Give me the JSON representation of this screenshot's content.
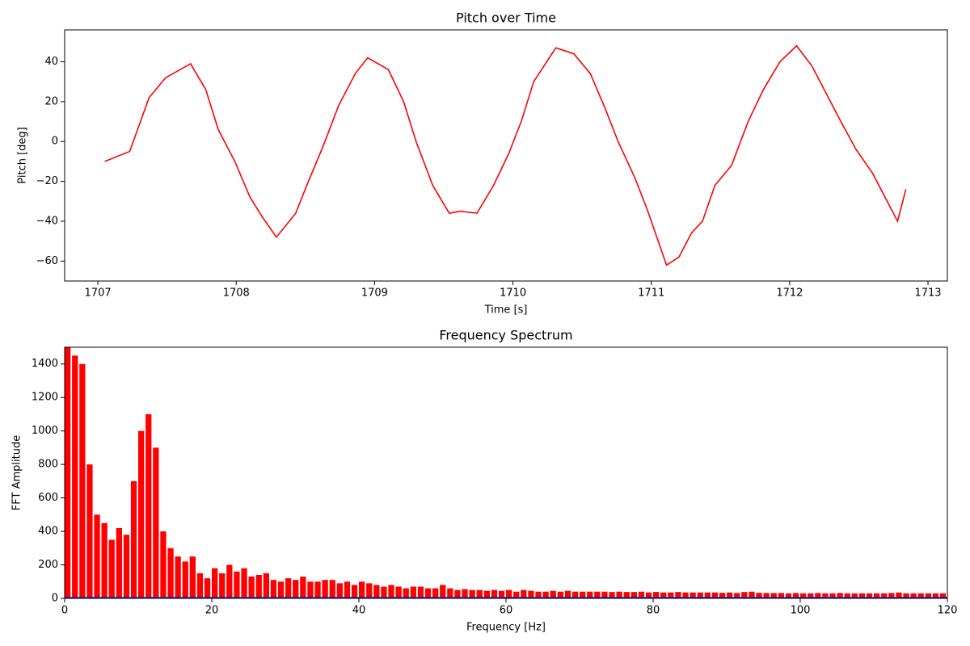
{
  "chart_data": [
    {
      "type": "line",
      "title": "Pitch over Time",
      "x_label": "Time [s]",
      "y_label": "Pitch [deg]",
      "x": [
        1707.05,
        1707.23,
        1707.37,
        1707.49,
        1707.67,
        1707.78,
        1707.87,
        1707.99,
        1708.1,
        1708.19,
        1708.29,
        1708.43,
        1708.51,
        1708.63,
        1708.74,
        1708.86,
        1708.95,
        1709.1,
        1709.21,
        1709.3,
        1709.42,
        1709.54,
        1709.62,
        1709.74,
        1709.86,
        1709.97,
        1710.06,
        1710.15,
        1710.31,
        1710.44,
        1710.56,
        1710.67,
        1710.76,
        1710.88,
        1710.97,
        1711.05,
        1711.11,
        1711.2,
        1711.29,
        1711.37,
        1711.46,
        1711.58,
        1711.7,
        1711.81,
        1711.93,
        1712.05,
        1712.16,
        1712.25,
        1712.37,
        1712.48,
        1712.6,
        1712.69,
        1712.78,
        1712.84
      ],
      "series": [
        {
          "name": "Pitch",
          "color": "#ff0000",
          "values": [
            -10,
            -5,
            22,
            32,
            39,
            26,
            6,
            -10,
            -28,
            -38,
            -48,
            -36,
            -22,
            -2,
            18,
            34,
            42,
            36,
            20,
            0,
            -22,
            -36,
            -35,
            -36,
            -22,
            -6,
            10,
            30,
            47,
            44,
            34,
            16,
            0,
            -18,
            -34,
            -50,
            -62,
            -58,
            -46,
            -40,
            -22,
            -12,
            10,
            26,
            40,
            48,
            38,
            26,
            10,
            -4,
            -16,
            -28,
            -40,
            -24
          ]
        }
      ],
      "xlim": [
        1706.76,
        1713.14
      ],
      "xticks": [
        1707,
        1708,
        1709,
        1710,
        1711,
        1712,
        1713
      ],
      "ylim": [
        -70,
        56
      ],
      "yticks": [
        {
          "value": -60,
          "label": "−60"
        },
        {
          "value": -40,
          "label": "−40"
        },
        {
          "value": -20,
          "label": "−20"
        },
        0,
        20,
        40
      ]
    },
    {
      "type": "bar",
      "title": "Frequency Spectrum",
      "x_label": "Frequency [Hz]",
      "y_label": "FFT Amplitude",
      "x": [
        0,
        1,
        2,
        3,
        4,
        5,
        6,
        7,
        8,
        9,
        10,
        11,
        12,
        13,
        14,
        15,
        16,
        17,
        18,
        19,
        20,
        21,
        22,
        23,
        24,
        25,
        26,
        27,
        28,
        29,
        30,
        31,
        32,
        33,
        34,
        35,
        36,
        37,
        38,
        39,
        40,
        41,
        42,
        43,
        44,
        45,
        46,
        47,
        48,
        49,
        50,
        51,
        52,
        53,
        54,
        55,
        56,
        57,
        58,
        59,
        60,
        61,
        62,
        63,
        64,
        65,
        66,
        67,
        68,
        69,
        70,
        71,
        72,
        73,
        74,
        75,
        76,
        77,
        78,
        79,
        80,
        81,
        82,
        83,
        84,
        85,
        86,
        87,
        88,
        89,
        90,
        91,
        92,
        93,
        94,
        95,
        96,
        97,
        98,
        99,
        100,
        101,
        102,
        103,
        104,
        105,
        106,
        107,
        108,
        109,
        110,
        111,
        112,
        113,
        114,
        115,
        116,
        117,
        118,
        119
      ],
      "series": [
        {
          "name": "Amplitude",
          "color": "#ff0000",
          "values": [
            1500,
            1450,
            1400,
            800,
            500,
            450,
            350,
            420,
            380,
            700,
            1000,
            1100,
            900,
            400,
            300,
            250,
            220,
            250,
            150,
            120,
            180,
            150,
            200,
            160,
            180,
            130,
            140,
            150,
            110,
            100,
            120,
            110,
            130,
            100,
            100,
            110,
            110,
            90,
            100,
            80,
            100,
            90,
            80,
            70,
            80,
            70,
            60,
            70,
            70,
            60,
            60,
            80,
            60,
            50,
            55,
            50,
            50,
            45,
            50,
            45,
            50,
            40,
            50,
            45,
            40,
            40,
            45,
            40,
            45,
            40,
            40,
            40,
            40,
            40,
            38,
            40,
            38,
            38,
            40,
            35,
            38,
            35,
            35,
            38,
            35,
            35,
            35,
            35,
            35,
            33,
            35,
            32,
            38,
            40,
            33,
            32,
            32,
            32,
            30,
            32,
            30,
            30,
            32,
            30,
            30,
            32,
            30,
            30,
            30,
            30,
            30,
            30,
            32,
            35,
            30,
            30,
            30,
            30,
            30,
            30
          ]
        }
      ],
      "xlim": [
        0,
        120
      ],
      "xticks": [
        0,
        20,
        40,
        60,
        80,
        100,
        120
      ],
      "ylim": [
        0,
        1500
      ],
      "yticks": [
        0,
        200,
        400,
        600,
        800,
        1000,
        1200,
        1400
      ]
    }
  ]
}
